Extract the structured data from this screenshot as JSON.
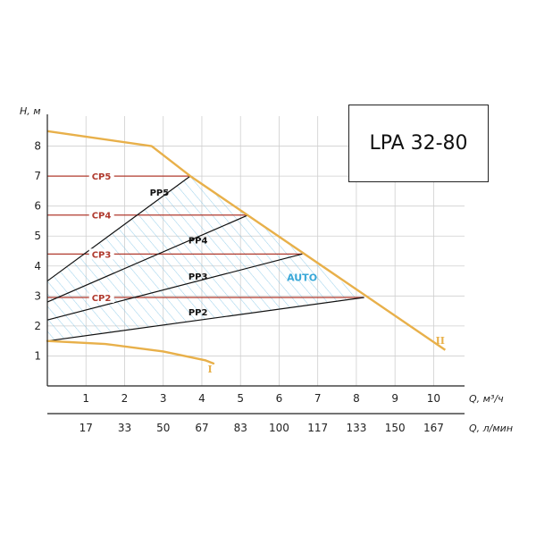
{
  "chart_data": {
    "type": "line",
    "model": "LPA 32-80",
    "ylabel": "H, м",
    "xlabel": "Q, м³/ч",
    "x2label": "Q, л/мин",
    "x_ticks": [
      1,
      2,
      3,
      4,
      5,
      6,
      7,
      8,
      9,
      10
    ],
    "x_tick_labels": [
      "1",
      "2",
      "3",
      "4",
      "5",
      "6",
      "7",
      "8",
      "9",
      "10"
    ],
    "x2_tick_labels": [
      "17",
      "33",
      "50",
      "67",
      "83",
      "100",
      "117",
      "133",
      "150",
      "167"
    ],
    "y_ticks": [
      1,
      2,
      3,
      4,
      5,
      6,
      7,
      8
    ],
    "y_tick_labels": [
      "1",
      "2",
      "3",
      "4",
      "5",
      "6",
      "7",
      "8"
    ],
    "xlim": [
      0,
      10.8
    ],
    "ylim": [
      0,
      9
    ],
    "grid": true,
    "colors": {
      "curve": "#e8b04a",
      "constant_pressure": "#b03a2e",
      "proportional": "#111111",
      "auto_hatch": "#7fc4e6",
      "grid": "#cfcfcf"
    },
    "max_curve": {
      "label": "II",
      "x": [
        0,
        2.7,
        3.7,
        10.3
      ],
      "y": [
        8.5,
        8.0,
        7.0,
        1.2
      ]
    },
    "min_curve": {
      "label": "I",
      "x": [
        0,
        1.5,
        3.0,
        4.1,
        4.3
      ],
      "y": [
        1.5,
        1.4,
        1.15,
        0.85,
        0.75
      ]
    },
    "constant_pressure": [
      {
        "name": "CP5",
        "y": 7.0,
        "x_end": 3.7
      },
      {
        "name": "CP4",
        "y": 5.7,
        "x_end": 5.2
      },
      {
        "name": "CP3",
        "y": 4.4,
        "x_end": 6.6
      },
      {
        "name": "CP2",
        "y": 2.95,
        "x_end": 8.2
      }
    ],
    "proportional_pressure": [
      {
        "name": "PP5",
        "x": [
          0,
          3.7
        ],
        "y": [
          3.5,
          7.0
        ]
      },
      {
        "name": "PP4",
        "x": [
          0,
          5.2
        ],
        "y": [
          2.8,
          5.7
        ]
      },
      {
        "name": "PP3",
        "x": [
          0,
          6.6
        ],
        "y": [
          2.2,
          4.4
        ]
      },
      {
        "name": "PP2",
        "x": [
          0,
          8.2
        ],
        "y": [
          1.5,
          2.95
        ]
      }
    ],
    "auto_region": {
      "label": "AUTO",
      "x": [
        0,
        3.7,
        8.2
      ],
      "y": [
        3.5,
        7.0,
        2.95
      ],
      "base": [
        [
          8.2,
          2.95
        ],
        [
          0,
          1.5
        ]
      ]
    }
  }
}
